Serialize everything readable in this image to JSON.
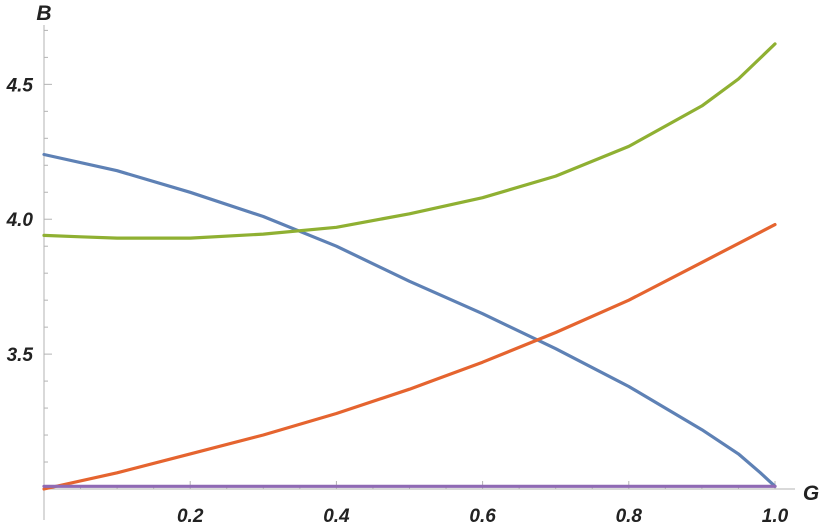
{
  "chart_data": {
    "type": "line",
    "xlabel": "G",
    "ylabel": "B",
    "xlim": [
      0.0,
      1.0
    ],
    "ylim": [
      3.0,
      4.72
    ],
    "x_ticks": [
      0.2,
      0.4,
      0.6,
      0.8,
      1.0
    ],
    "x_tick_labels": [
      "0.2",
      "0.4",
      "0.6",
      "0.8",
      "1.0"
    ],
    "y_ticks": [
      3.5,
      4.0,
      4.5
    ],
    "y_tick_labels": [
      "3.5",
      "4.0",
      "4.5"
    ],
    "grid": false,
    "legend": "none",
    "series": [
      {
        "color": "#5e81b5",
        "x": [
          0.0,
          0.1,
          0.2,
          0.3,
          0.4,
          0.5,
          0.6,
          0.7,
          0.8,
          0.9,
          0.95,
          0.98,
          1.0
        ],
        "y": [
          4.24,
          4.18,
          4.1,
          4.01,
          3.9,
          3.77,
          3.65,
          3.52,
          3.38,
          3.22,
          3.13,
          3.06,
          3.01
        ]
      },
      {
        "color": "#e5642f",
        "x": [
          0.0,
          0.1,
          0.2,
          0.3,
          0.4,
          0.5,
          0.6,
          0.7,
          0.8,
          0.9,
          1.0
        ],
        "y": [
          3.0,
          3.06,
          3.13,
          3.2,
          3.28,
          3.37,
          3.47,
          3.58,
          3.7,
          3.84,
          3.98
        ]
      },
      {
        "color": "#8fb032",
        "x": [
          0.0,
          0.05,
          0.1,
          0.15,
          0.2,
          0.3,
          0.4,
          0.5,
          0.6,
          0.7,
          0.8,
          0.9,
          0.95,
          1.0
        ],
        "y": [
          3.94,
          3.935,
          3.93,
          3.93,
          3.93,
          3.945,
          3.97,
          4.02,
          4.08,
          4.16,
          4.27,
          4.42,
          4.52,
          4.65
        ]
      },
      {
        "color": "#8f6ab4",
        "x": [
          0.0,
          1.0
        ],
        "y": [
          3.01,
          3.01
        ]
      }
    ]
  }
}
